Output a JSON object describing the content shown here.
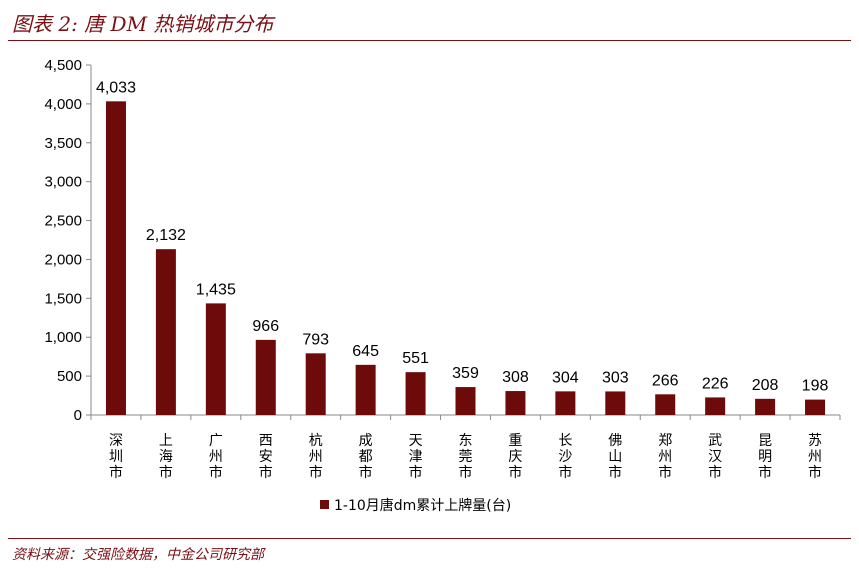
{
  "header": {
    "title": "图表 2: 唐 DM 热销城市分布"
  },
  "footer": {
    "source": "资料来源：交强险数据，中金公司研究部"
  },
  "colors": {
    "accent": "#7a0f14",
    "bar": "#6d0a0a"
  },
  "chart_data": {
    "type": "bar",
    "categories": [
      "深圳市",
      "上海市",
      "广州市",
      "西安市",
      "杭州市",
      "成都市",
      "天津市",
      "东莞市",
      "重庆市",
      "长沙市",
      "佛山市",
      "郑州市",
      "武汉市",
      "昆明市",
      "苏州市"
    ],
    "series": [
      {
        "name": "1-10月唐dm累计上牌量(台)",
        "values": [
          4033,
          2132,
          1435,
          966,
          793,
          645,
          551,
          359,
          308,
          304,
          303,
          266,
          226,
          208,
          198
        ]
      }
    ],
    "value_labels": [
      "4,033",
      "2,132",
      "1,435",
      "966",
      "793",
      "645",
      "551",
      "359",
      "308",
      "304",
      "303",
      "266",
      "226",
      "208",
      "198"
    ],
    "yticks": [
      "0",
      "500",
      "1,000",
      "1,500",
      "2,000",
      "2,500",
      "3,000",
      "3,500",
      "4,000",
      "4,500"
    ],
    "ylim": [
      0,
      4500
    ],
    "grid": false,
    "legend_position": "bottom"
  }
}
